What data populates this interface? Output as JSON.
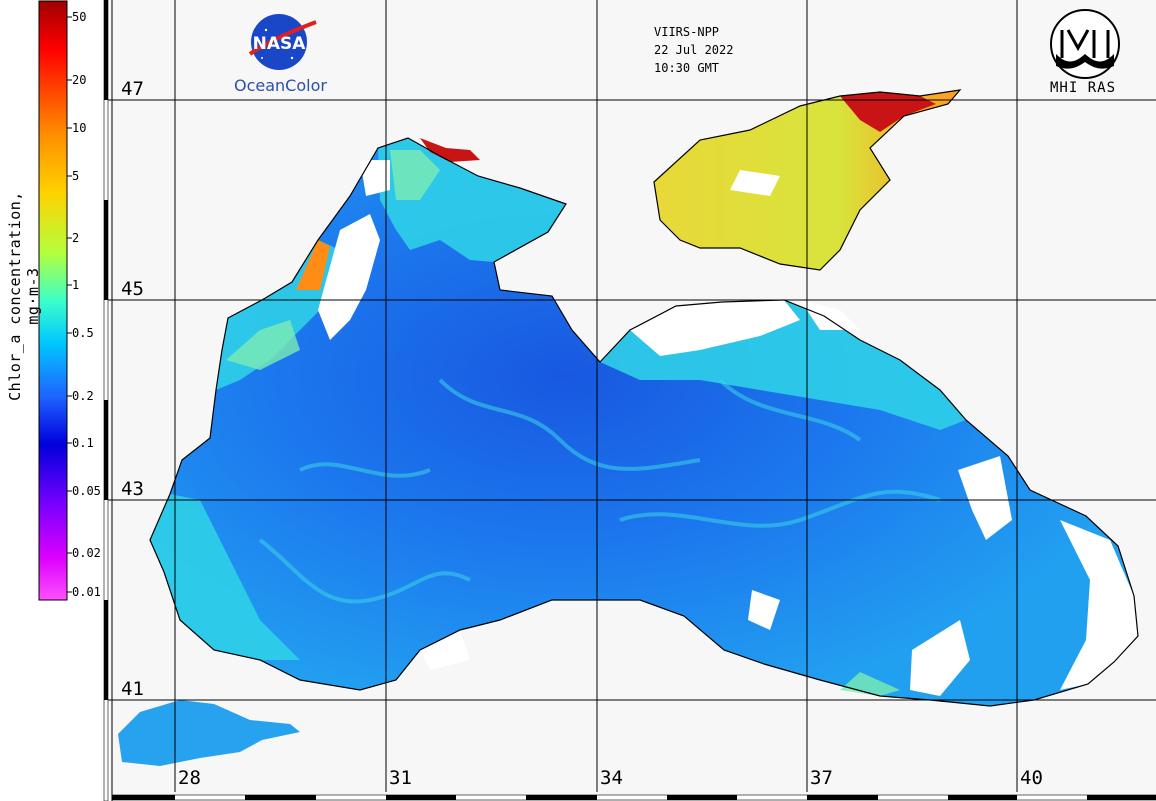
{
  "sensor": "VIIRS-NPP",
  "date": "22 Jul 2022",
  "time": "10:30 GMT",
  "logos": {
    "nasa_text": "NASA",
    "oceancolor": "OceanColor",
    "mhi": "MHI RAS"
  },
  "colorbar": {
    "title": "Chlor_a concentration, mg·m-3",
    "ticks": [
      "50",
      "20",
      "10",
      "5",
      "2",
      "1",
      "0.5",
      "0.2",
      "0.1",
      "0.05",
      "0.02",
      "0.01"
    ],
    "colors": [
      "#a00000",
      "#ff0000",
      "#ff8c00",
      "#ffd200",
      "#b4ff3c",
      "#3cffc8",
      "#00c8ff",
      "#1e64ff",
      "#0000dc",
      "#7800ff",
      "#dc00ff",
      "#ff50ff"
    ]
  },
  "grid": {
    "latitudes": [
      "47",
      "45",
      "43",
      "41"
    ],
    "longitudes": [
      "28",
      "31",
      "34",
      "37",
      "40"
    ]
  },
  "map_colors": {
    "deep": "#1f6fe8",
    "open": "#1c8cf0",
    "coastal": "#2ad6e6",
    "shelf": "#7ef0b0",
    "azov": "#e6e03c",
    "bloom": "#ff8c14",
    "hot": "#c81414",
    "land": "#f7f7f7"
  }
}
